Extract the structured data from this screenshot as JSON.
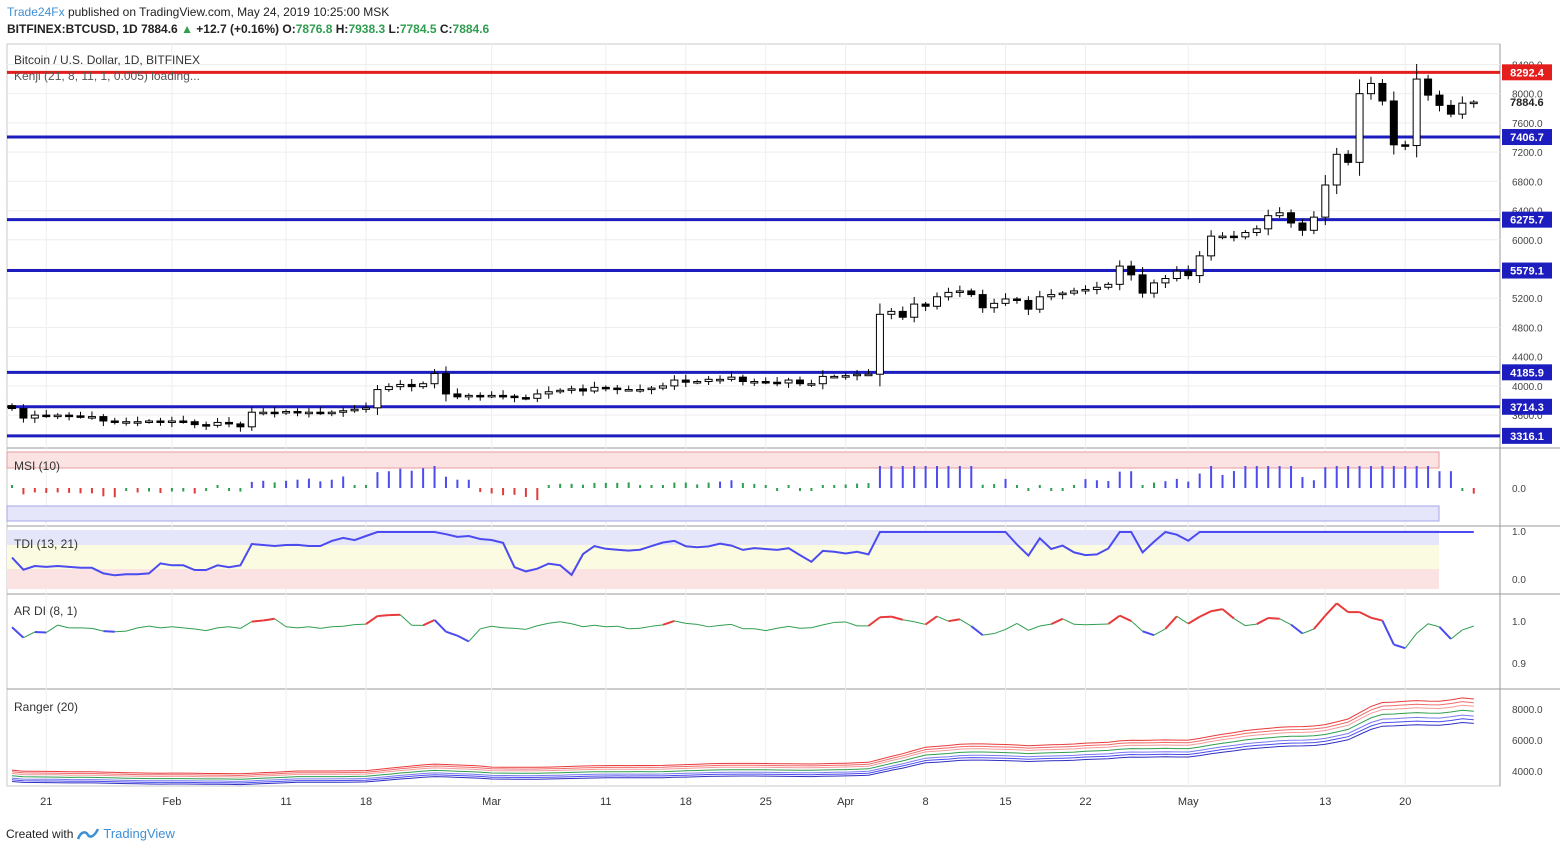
{
  "header": {
    "brand": "Trade24Fx",
    "published": "published on TradingView.com, May 24, 2019 10:25:00 MSK",
    "symbol": "BITFINEX:BTCUSD, 1D",
    "last": "7884.6",
    "change": "+12.7 (+0.16%)",
    "o_label": "O:",
    "o": "7876.8",
    "h_label": "H:",
    "h": "7938.3",
    "l_label": "L:",
    "l": "7784.5",
    "c_label": "C:",
    "c": "7884.6"
  },
  "footer": {
    "created_with": "Created with",
    "tradingview": "TradingView"
  },
  "colors": {
    "support": "#1d1dbf",
    "resistance": "#e41d1d",
    "bull": "#ffffff",
    "bear": "#000000",
    "msi_bar": "#4b4bf0",
    "msi_neg": "#e03c3c",
    "msi_small": "#2e9e4f",
    "tdi_line": "#4b4bf0",
    "ardi_green": "#2e9e4f",
    "ardi_red": "#e83a3a",
    "ardi_blue": "#4b4bf0"
  },
  "chart_data": [
    {
      "type": "candlestick",
      "title": "Bitcoin / U.S. Dollar, 1D, BITFINEX",
      "subtitle": "Kenji (21, 8, 11, 1, 0.005) loading...",
      "x_ticks": [
        {
          "label": "21",
          "index": 3
        },
        {
          "label": "Feb",
          "index": 14
        },
        {
          "label": "11",
          "index": 24
        },
        {
          "label": "18",
          "index": 31
        },
        {
          "label": "Mar",
          "index": 42
        },
        {
          "label": "11",
          "index": 52
        },
        {
          "label": "18",
          "index": 59
        },
        {
          "label": "25",
          "index": 66
        },
        {
          "label": "Apr",
          "index": 73
        },
        {
          "label": "8",
          "index": 80
        },
        {
          "label": "15",
          "index": 87
        },
        {
          "label": "22",
          "index": 94
        },
        {
          "label": "May",
          "index": 103
        },
        {
          "label": "13",
          "index": 115
        },
        {
          "label": "20",
          "index": 122
        }
      ],
      "y_ticks": [
        3600,
        4000,
        4400,
        4800,
        5200,
        5600,
        6000,
        6400,
        6800,
        7200,
        7600,
        8000,
        8400
      ],
      "y_tick_labels": [
        "3600.0",
        "4000.0",
        "4400.0",
        "4800.0",
        "5200.0",
        "5600.0",
        "6000.0",
        "6400.0",
        "6800.0",
        "7200.0",
        "7600.0",
        "8000.0",
        "8400.0"
      ],
      "ylim": [
        3150,
        8680
      ],
      "levels": [
        {
          "value": 8292.4,
          "label": "8292.4",
          "kind": "resistance"
        },
        {
          "value": 7406.7,
          "label": "7406.7",
          "kind": "support"
        },
        {
          "value": 6275.7,
          "label": "6275.7",
          "kind": "support"
        },
        {
          "value": 5579.1,
          "label": "5579.1",
          "kind": "support"
        },
        {
          "value": 4185.9,
          "label": "4185.9",
          "kind": "support"
        },
        {
          "value": 3714.3,
          "label": "3714.3",
          "kind": "support"
        },
        {
          "value": 3316.1,
          "label": "3316.1",
          "kind": "support"
        }
      ],
      "last_price": {
        "value": 7884.6,
        "label": "7884.6"
      },
      "close": [
        3690,
        3560,
        3600,
        3590,
        3600,
        3590,
        3580,
        3580,
        3520,
        3500,
        3510,
        3510,
        3520,
        3500,
        3520,
        3510,
        3470,
        3460,
        3500,
        3480,
        3440,
        3640,
        3640,
        3630,
        3650,
        3630,
        3640,
        3630,
        3640,
        3660,
        3680,
        3700,
        3950,
        3990,
        4020,
        3990,
        4030,
        4170,
        3890,
        3850,
        3870,
        3860,
        3870,
        3860,
        3840,
        3830,
        3890,
        3920,
        3940,
        3960,
        3930,
        3980,
        3970,
        3950,
        3950,
        3950,
        3970,
        4000,
        4080,
        4050,
        4060,
        4090,
        4090,
        4120,
        4060,
        4060,
        4050,
        4040,
        4080,
        4030,
        4030,
        4130,
        4130,
        4140,
        4160,
        4160,
        4980,
        5020,
        4940,
        5120,
        5090,
        5220,
        5280,
        5300,
        5250,
        5070,
        5130,
        5190,
        5170,
        5050,
        5220,
        5250,
        5270,
        5300,
        5320,
        5350,
        5390,
        5640,
        5520,
        5270,
        5410,
        5470,
        5570,
        5510,
        5780,
        6050,
        6050,
        6040,
        6100,
        6150,
        6330,
        6370,
        6230,
        6130,
        6310,
        6750,
        7170,
        7060,
        8000,
        8140,
        7900,
        7300,
        7290,
        8200,
        7980,
        7840,
        7720,
        7870,
        7884.6
      ],
      "open_prev_close": true
    },
    {
      "type": "bar",
      "name": "MSI (10)",
      "y_tick_labels": [
        "0.0"
      ]
    },
    {
      "type": "line",
      "name": "TDI (13, 21)",
      "y_tick_labels": [
        "1.0",
        "0.0"
      ]
    },
    {
      "type": "line",
      "name": "AR DI (8, 1)",
      "y_tick_labels": [
        "1.0",
        "0.9"
      ]
    },
    {
      "type": "line",
      "name": "Ranger (20)",
      "y_tick_labels": [
        "8000.0",
        "6000.0",
        "4000.0"
      ]
    }
  ]
}
